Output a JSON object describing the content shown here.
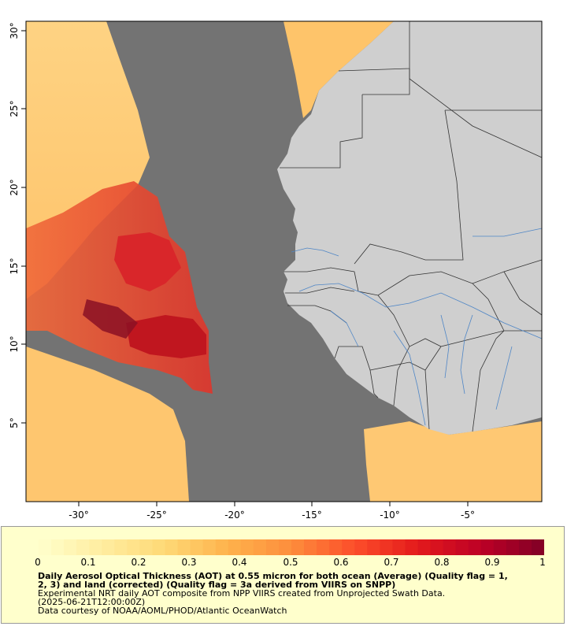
{
  "map": {
    "x_ticks": [
      "-30°",
      "-25°",
      "-20°",
      "-15°",
      "-10°",
      "-5°"
    ],
    "y_ticks": [
      "30°",
      "25°",
      "20°",
      "15°",
      "10°",
      "5°"
    ],
    "colors": {
      "no_data": "#737373",
      "land": "#cfcfcf",
      "border": "#333333",
      "river": "#4f86c6"
    }
  },
  "legend": {
    "ticks": [
      "0",
      "0.1",
      "0.2",
      "0.3",
      "0.4",
      "0.5",
      "0.6",
      "0.7",
      "0.8",
      "0.9",
      "1"
    ],
    "range": [
      0,
      1
    ],
    "title_line1": "Daily Aerosol Optical Thickness (AOT) at 0.55 micron for both ocean (Average) (Quality flag = 1,",
    "title_line2": "2, 3) and land (corrected) (Quality flag = 3a derived from VIIRS on SNPP)",
    "desc": "Experimental NRT daily AOT composite from NPP VIIRS created from Unprojected Swath Data.",
    "date": "(2025-06-21T12:00:00Z)",
    "credit": "Data courtesy of NOAA/AOML/PHOD/Atlantic OceanWatch",
    "colors": [
      "#ffffcc",
      "#ffeda0",
      "#fed976",
      "#feb24c",
      "#fd8d3c",
      "#fc4e2a",
      "#e31a1c",
      "#bd0026",
      "#800026"
    ]
  }
}
